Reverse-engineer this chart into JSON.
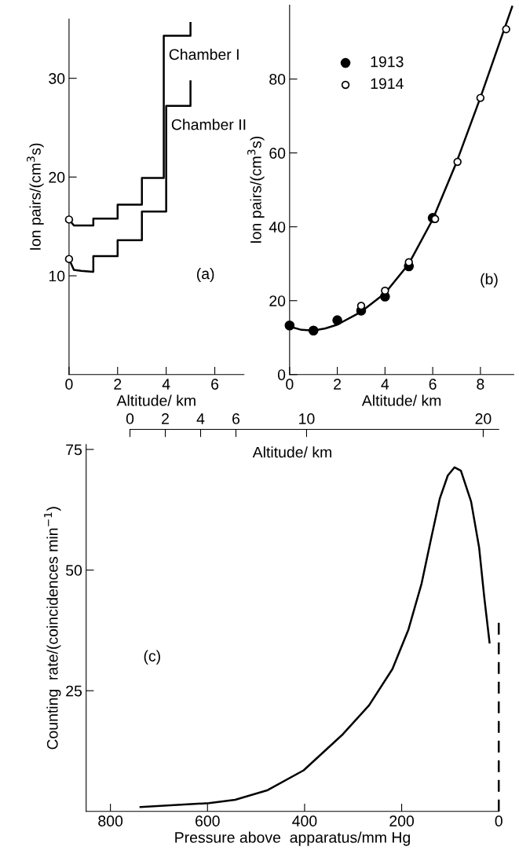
{
  "chart_data": [
    {
      "type": "line",
      "xlabel": "Altitude/ km",
      "ylabel": "Ion pairs/(cm$^{3}$s)",
      "xlim": [
        0,
        7.2
      ],
      "ylim": [
        0,
        36
      ],
      "xticks": [
        0,
        2,
        4,
        6
      ],
      "yticks": [
        10,
        20,
        30
      ],
      "annotations": [
        "(a)"
      ],
      "series": [
        {
          "name": "Chamber I",
          "color": "#000000",
          "x": [
            0,
            0.2,
            1,
            1,
            2,
            2,
            3,
            3,
            3.9,
            3.9,
            5,
            5
          ],
          "values": [
            15.7,
            15.1,
            15.1,
            15.8,
            15.8,
            17.2,
            17.2,
            19.9,
            19.9,
            34.3,
            34.3,
            35.6
          ]
        },
        {
          "name": "Chamber II",
          "color": "#000000",
          "x": [
            0,
            0.2,
            0.5,
            1,
            1,
            2,
            2,
            3,
            3,
            4,
            4,
            5,
            5
          ],
          "values": [
            11.7,
            10.6,
            10.5,
            10.4,
            12.0,
            12.0,
            13.6,
            13.6,
            16.5,
            16.5,
            27.2,
            27.2,
            29.7
          ]
        },
        {
          "type": "scatter",
          "color": "#ffffff",
          "marker": "circle",
          "x": [
            0,
            0
          ],
          "values": [
            15.7,
            11.7
          ]
        }
      ]
    },
    {
      "type": "scatter",
      "xlabel": "Altitude/ km",
      "ylabel": "Ion pairs/(cm$^{3}$s)",
      "xlim": [
        0,
        9.4
      ],
      "ylim": [
        0,
        100
      ],
      "xticks": [
        0,
        2,
        4,
        6,
        8
      ],
      "yticks": [
        0,
        20,
        40,
        60,
        80
      ],
      "annotations": [
        "(b)"
      ],
      "legend": "top left",
      "series": [
        {
          "name": "1913",
          "marker": "circle",
          "color": "#000000",
          "x": [
            0,
            1,
            2,
            3,
            4,
            5,
            6
          ],
          "values": [
            13.3,
            11.9,
            14.7,
            17.3,
            21.1,
            29.3,
            42.4
          ]
        },
        {
          "name": "1914",
          "marker": "circle",
          "color": "#ffffff",
          "x": [
            3,
            4,
            5,
            6.1,
            7.04,
            8,
            9.08
          ],
          "values": [
            18.6,
            22.7,
            30.4,
            42.1,
            57.6,
            74.9,
            93.5
          ]
        },
        {
          "type": "line",
          "marker": "none",
          "color": "#000000",
          "x": [
            0,
            0.5,
            1,
            1.5,
            2,
            3,
            4,
            5,
            6,
            7,
            8,
            9,
            9.33
          ],
          "values": [
            13,
            12.1,
            11.9,
            12.5,
            13.5,
            17,
            22,
            30,
            42,
            57.5,
            75,
            93.5,
            99.6
          ]
        }
      ]
    },
    {
      "type": "line",
      "xlabel": "Pressure above  apparatus/mm Hg",
      "ylabel": "Counting  rate/(coincidences min$^{−1}$)",
      "xlim": [
        850,
        0
      ],
      "ylim": [
        0,
        76
      ],
      "xticks": [
        800,
        600,
        400,
        200,
        0
      ],
      "yticks": [
        25,
        50,
        75
      ],
      "annotations": [
        "(c)"
      ],
      "x2label": "Altitude/ km",
      "x2lim": [
        -2.48,
        20.88
      ],
      "x2ticks": [
        0,
        2,
        4,
        6,
        10,
        20
      ],
      "series": [
        {
          "color": "#000000",
          "x": [
            738,
            597,
            543,
            476,
            402,
            321,
            267,
            219,
            186,
            159,
            139,
            121.5,
            105,
            91,
            78,
            57,
            40.5,
            30,
            19
          ],
          "values": [
            0.9,
            1.7,
            2.4,
            4.4,
            8.5,
            16,
            22,
            29.5,
            37.7,
            47.2,
            56.7,
            64.8,
            69.6,
            71.3,
            70.6,
            64.2,
            54.7,
            44.5,
            35
          ]
        },
        {
          "color": "#000000",
          "line_style": "dashed",
          "x": [
            0,
            0
          ],
          "values": [
            0,
            40
          ]
        }
      ]
    }
  ]
}
